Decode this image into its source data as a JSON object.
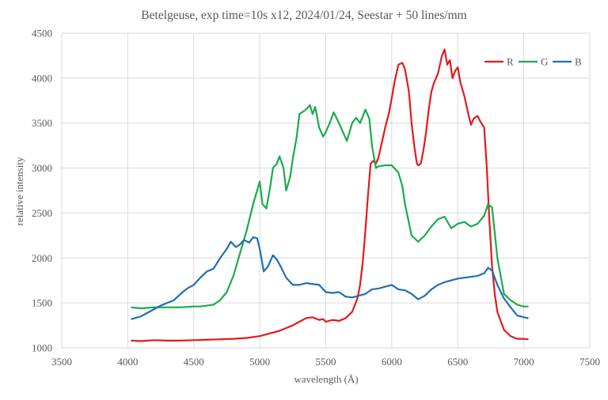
{
  "chart_data": {
    "type": "line",
    "title": "Betelgeuse, exp time=10s x12, 2024/01/24, Seestar + 50 lines/mm",
    "xlabel": "wavelength (Å)",
    "ylabel": "relative intensity",
    "xlim": [
      3500,
      7500
    ],
    "ylim": [
      1000,
      4500
    ],
    "x_ticks": [
      "3500",
      "4000",
      "4500",
      "5000",
      "5500",
      "6000",
      "6500",
      "7000",
      "7500"
    ],
    "y_ticks": [
      "1000",
      "1500",
      "2000",
      "2500",
      "3000",
      "3500",
      "4000",
      "4500"
    ],
    "grid": true,
    "legend_position": "top-right",
    "series": [
      {
        "name": "R",
        "color": "#e31a1c",
        "x": [
          4030,
          4100,
          4200,
          4300,
          4400,
          4500,
          4600,
          4700,
          4800,
          4900,
          5000,
          5050,
          5100,
          5150,
          5200,
          5250,
          5300,
          5350,
          5400,
          5450,
          5480,
          5500,
          5550,
          5600,
          5650,
          5700,
          5740,
          5760,
          5780,
          5800,
          5820,
          5840,
          5860,
          5880,
          5900,
          5920,
          5950,
          5980,
          6000,
          6020,
          6050,
          6080,
          6100,
          6130,
          6150,
          6170,
          6190,
          6200,
          6220,
          6240,
          6260,
          6280,
          6300,
          6320,
          6350,
          6380,
          6400,
          6420,
          6440,
          6460,
          6480,
          6500,
          6520,
          6550,
          6580,
          6600,
          6620,
          6650,
          6670,
          6700,
          6720,
          6740,
          6760,
          6780,
          6800,
          6850,
          6900,
          6950,
          7000,
          7030
        ],
        "values": [
          1080,
          1075,
          1085,
          1080,
          1080,
          1085,
          1090,
          1095,
          1100,
          1110,
          1130,
          1150,
          1170,
          1190,
          1220,
          1250,
          1290,
          1330,
          1340,
          1310,
          1320,
          1290,
          1310,
          1300,
          1330,
          1400,
          1550,
          1700,
          1950,
          2300,
          2700,
          3050,
          3080,
          3050,
          3120,
          3250,
          3450,
          3620,
          3780,
          3950,
          4150,
          4170,
          4100,
          3850,
          3500,
          3250,
          3050,
          3030,
          3050,
          3200,
          3400,
          3650,
          3850,
          3950,
          4050,
          4250,
          4320,
          4150,
          4200,
          4000,
          4080,
          4120,
          3950,
          3800,
          3600,
          3480,
          3550,
          3580,
          3520,
          3450,
          3000,
          2400,
          1900,
          1600,
          1400,
          1200,
          1130,
          1100,
          1100,
          1095
        ]
      },
      {
        "name": "G",
        "color": "#1aab4c",
        "x": [
          4030,
          4100,
          4200,
          4300,
          4400,
          4500,
          4550,
          4600,
          4650,
          4700,
          4750,
          4800,
          4850,
          4900,
          4950,
          4980,
          5000,
          5020,
          5050,
          5080,
          5100,
          5130,
          5150,
          5180,
          5200,
          5230,
          5250,
          5280,
          5300,
          5350,
          5380,
          5400,
          5420,
          5450,
          5480,
          5500,
          5530,
          5560,
          5600,
          5630,
          5660,
          5700,
          5730,
          5760,
          5800,
          5830,
          5850,
          5880,
          5900,
          5950,
          6000,
          6050,
          6080,
          6100,
          6150,
          6200,
          6250,
          6300,
          6350,
          6400,
          6450,
          6500,
          6550,
          6600,
          6650,
          6700,
          6730,
          6760,
          6800,
          6850,
          6900,
          6950,
          7000,
          7030
        ],
        "values": [
          1450,
          1440,
          1450,
          1450,
          1450,
          1460,
          1460,
          1470,
          1480,
          1530,
          1620,
          1800,
          2050,
          2300,
          2600,
          2750,
          2850,
          2600,
          2550,
          2800,
          3000,
          3050,
          3130,
          3000,
          2750,
          2900,
          3100,
          3350,
          3600,
          3650,
          3700,
          3600,
          3680,
          3450,
          3350,
          3400,
          3500,
          3620,
          3500,
          3400,
          3300,
          3500,
          3560,
          3500,
          3650,
          3550,
          3250,
          3000,
          3020,
          3030,
          3030,
          2950,
          2800,
          2600,
          2250,
          2180,
          2250,
          2350,
          2430,
          2460,
          2330,
          2380,
          2400,
          2350,
          2380,
          2470,
          2600,
          2560,
          2000,
          1600,
          1530,
          1480,
          1460,
          1460
        ]
      },
      {
        "name": "B",
        "color": "#1f6fb5",
        "x": [
          4030,
          4100,
          4150,
          4200,
          4250,
          4300,
          4350,
          4400,
          4450,
          4500,
          4550,
          4600,
          4650,
          4700,
          4750,
          4780,
          4820,
          4850,
          4880,
          4920,
          4950,
          4980,
          5000,
          5030,
          5060,
          5100,
          5130,
          5160,
          5200,
          5250,
          5300,
          5350,
          5400,
          5450,
          5500,
          5550,
          5600,
          5650,
          5700,
          5750,
          5800,
          5850,
          5900,
          5950,
          6000,
          6050,
          6100,
          6150,
          6200,
          6250,
          6300,
          6350,
          6400,
          6450,
          6500,
          6550,
          6600,
          6650,
          6700,
          6730,
          6760,
          6800,
          6850,
          6900,
          6950,
          7000,
          7030
        ],
        "values": [
          1320,
          1350,
          1390,
          1430,
          1470,
          1500,
          1530,
          1600,
          1660,
          1700,
          1780,
          1850,
          1880,
          2000,
          2100,
          2180,
          2120,
          2150,
          2200,
          2170,
          2230,
          2220,
          2100,
          1850,
          1900,
          2030,
          1980,
          1900,
          1780,
          1700,
          1700,
          1720,
          1710,
          1700,
          1620,
          1610,
          1620,
          1570,
          1560,
          1580,
          1600,
          1650,
          1660,
          1680,
          1700,
          1650,
          1640,
          1600,
          1540,
          1580,
          1650,
          1700,
          1730,
          1750,
          1770,
          1780,
          1790,
          1800,
          1830,
          1890,
          1860,
          1700,
          1550,
          1450,
          1360,
          1340,
          1330
        ]
      }
    ]
  }
}
